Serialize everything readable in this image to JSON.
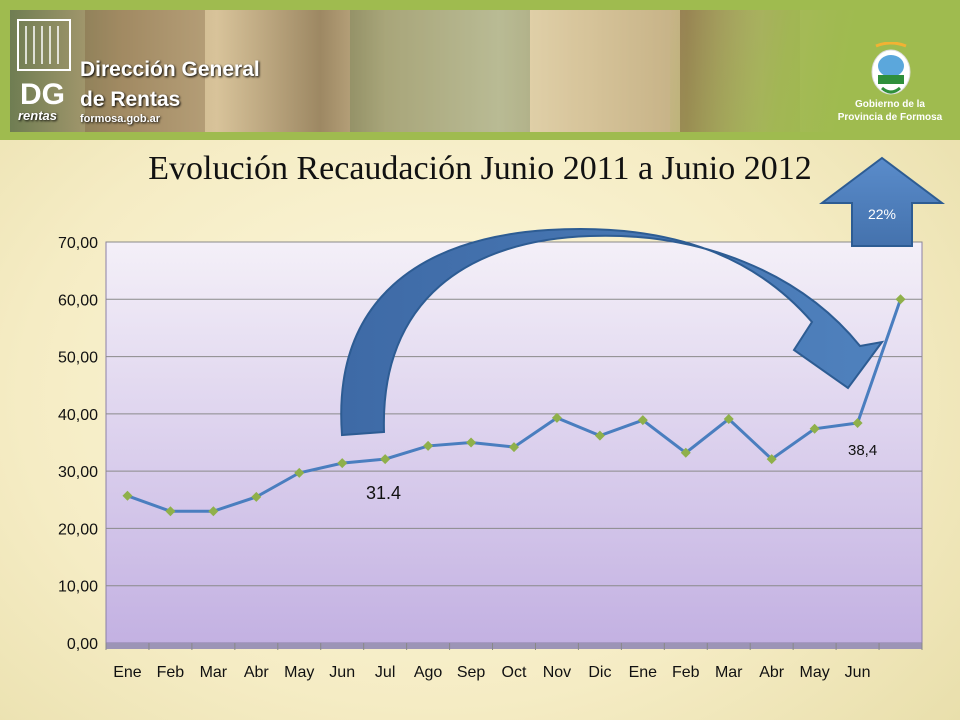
{
  "header": {
    "logo_title_line1": "Dirección General",
    "logo_title_line2": "de Rentas",
    "logo_url": "formosa.gob.ar",
    "logo_rentas": "rentas",
    "gov_line1": "Gobierno de la",
    "gov_line2": "Provincia de Formosa"
  },
  "colors": {
    "banner": "#9fbb4f",
    "series_line": "#4a7ebf",
    "marker": "#8fb04a",
    "arrow_fill": "#4f81bd",
    "arrow_stroke": "#2d5c93"
  },
  "chart_data": {
    "type": "line",
    "title": "Evolución Recaudación Junio 2011 a Junio 2012",
    "categories": [
      "Ene",
      "Feb",
      "Mar",
      "Abr",
      "May",
      "Jun",
      "Jul",
      "Ago",
      "Sep",
      "Oct",
      "Nov",
      "Dic",
      "Ene",
      "Feb",
      "Mar",
      "Abr",
      "May",
      "Jun",
      ""
    ],
    "series": [
      {
        "values": [
          25.7,
          23.0,
          23.0,
          25.5,
          29.7,
          31.4,
          32.1,
          34.4,
          35.0,
          34.2,
          39.3,
          36.2,
          38.9,
          33.2,
          39.1,
          32.1,
          37.4,
          38.4,
          60.0
        ]
      }
    ],
    "ylim": [
      0,
      70
    ],
    "yticks": [
      "0,00",
      "10,00",
      "20,00",
      "30,00",
      "40,00",
      "50,00",
      "60,00",
      "70,00"
    ],
    "grid": true,
    "annotations": {
      "point_label_jun": "31.4",
      "point_label_last": "38,4",
      "increase_badge": "22%"
    }
  }
}
